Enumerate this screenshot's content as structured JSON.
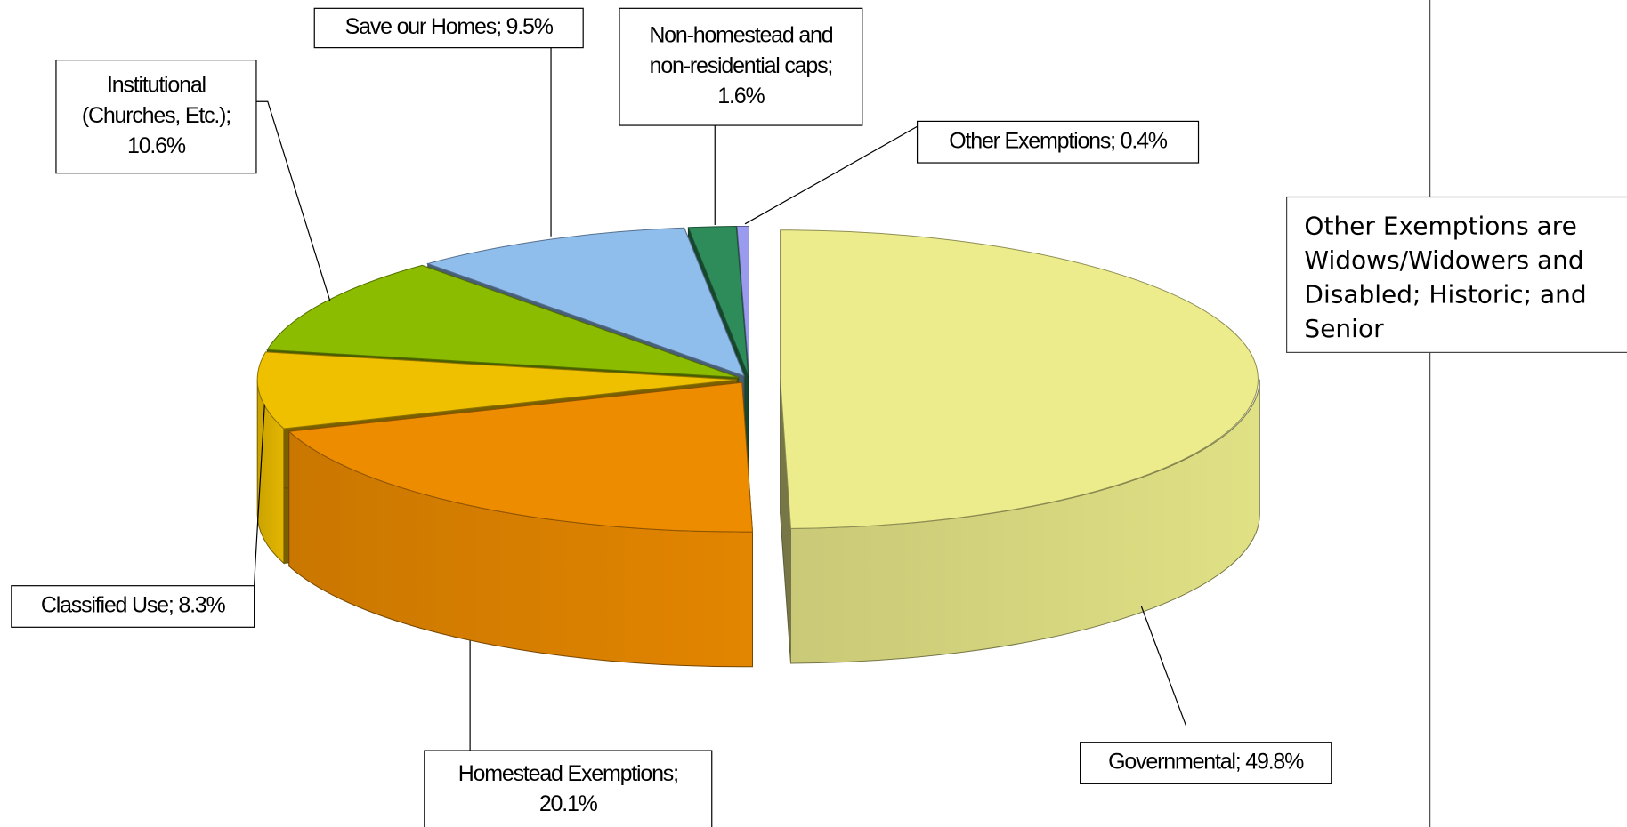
{
  "chart_data": {
    "type": "pie3d",
    "values": [
      49.8,
      20.1,
      8.3,
      10.6,
      9.5,
      1.6,
      0.4
    ],
    "labels": [
      [
        "Governmental; 49.8%"
      ],
      [
        "Homestead Exemptions;",
        "20.1%"
      ],
      [
        "Classified Use; 8.3%"
      ],
      [
        "Institutional",
        "(Churches, Etc.);",
        "10.6%"
      ],
      [
        "Save our Homes; 9.5%"
      ],
      [
        "Non-homestead and",
        "non-residential caps;",
        "1.6%"
      ],
      [
        "Other Exemptions; 0.4%"
      ]
    ],
    "colors": [
      "#ecec8c",
      "#ee8c00",
      "#efc000",
      "#8cbc00",
      "#8fbdec",
      "#2e8b5a",
      "#9a9aee"
    ],
    "annotation": [
      "Other Exemptions are",
      "Widows/Widowers and",
      "Disabled; Historic; and",
      "Senior"
    ]
  }
}
